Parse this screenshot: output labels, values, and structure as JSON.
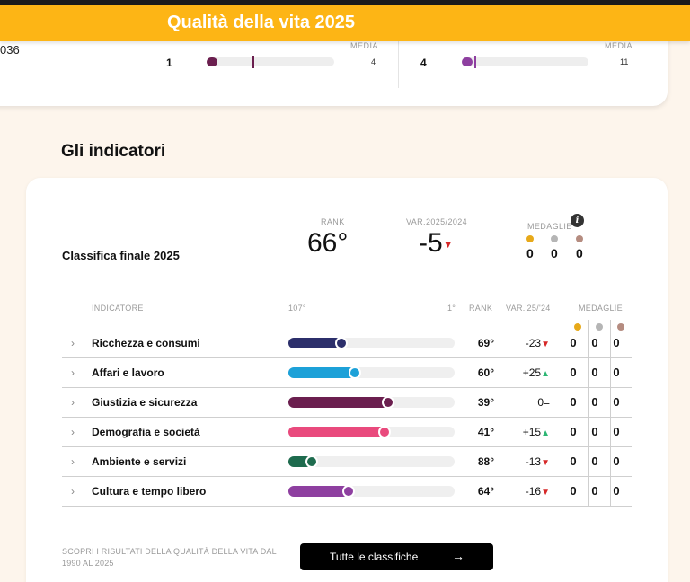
{
  "header": {
    "title": "Qualità della vita 2025"
  },
  "top_card": {
    "left_value": "036",
    "blocks": [
      {
        "media_label": "MEDIA",
        "rank": "1",
        "value": "4",
        "color": "#6b1f4f",
        "fill": 0.06
      },
      {
        "media_label": "MEDIA",
        "rank": "4",
        "value": "11",
        "color": "#8e3fa0",
        "fill": 0.02
      }
    ]
  },
  "section": {
    "title": "Gli indicatori"
  },
  "summary": {
    "title": "Classifica finale 2025",
    "rank_label": "RANK",
    "rank_value": "66°",
    "var_label": "VAR.2025/2024",
    "var_value": "-5",
    "var_icon": "▼",
    "medals_label": "MEDAGLIE",
    "info_icon": "i",
    "medals": [
      {
        "name": "gold",
        "color": "#e7a91a",
        "count": "0"
      },
      {
        "name": "silver",
        "color": "#b5b5b5",
        "count": "0"
      },
      {
        "name": "bronze",
        "color": "#b58c80",
        "count": "0"
      }
    ]
  },
  "table": {
    "headers": {
      "indicator": "INDICATORE",
      "scale_left": "107°",
      "scale_right": "1°",
      "rank": "RANK",
      "var": "VAR.'25/'24",
      "medals": "MEDAGLIE"
    },
    "chevron": "›",
    "rows": [
      {
        "name": "Ricchezza e consumi",
        "rank": "69°",
        "var": "-23",
        "trend": "down",
        "color": "#2c2f6b",
        "progress": 0.32,
        "medals": [
          "0",
          "0",
          "0"
        ]
      },
      {
        "name": "Affari e lavoro",
        "rank": "60°",
        "var": "+25",
        "trend": "up",
        "color": "#1da1d8",
        "progress": 0.4,
        "medals": [
          "0",
          "0",
          "0"
        ]
      },
      {
        "name": "Giustizia e sicurezza",
        "rank": "39°",
        "var": "0=",
        "trend": "eq",
        "color": "#6b1f4f",
        "progress": 0.6,
        "medals": [
          "0",
          "0",
          "0"
        ]
      },
      {
        "name": "Demografia e società",
        "rank": "41°",
        "var": "+15",
        "trend": "up",
        "color": "#e94a7d",
        "progress": 0.58,
        "medals": [
          "0",
          "0",
          "0"
        ]
      },
      {
        "name": "Ambiente e servizi",
        "rank": "88°",
        "var": "-13",
        "trend": "down",
        "color": "#1e6b4e",
        "progress": 0.14,
        "medals": [
          "0",
          "0",
          "0"
        ]
      },
      {
        "name": "Cultura e tempo libero",
        "rank": "64°",
        "var": "-16",
        "trend": "down",
        "color": "#8e3fa0",
        "progress": 0.36,
        "medals": [
          "0",
          "0",
          "0"
        ]
      }
    ]
  },
  "footer": {
    "text": "SCOPRI I RISULTATI DELLA QUALITÀ DELLA VITA DAL 1990 AL 2025",
    "button_label": "Tutte le classifiche",
    "button_arrow": "→"
  }
}
